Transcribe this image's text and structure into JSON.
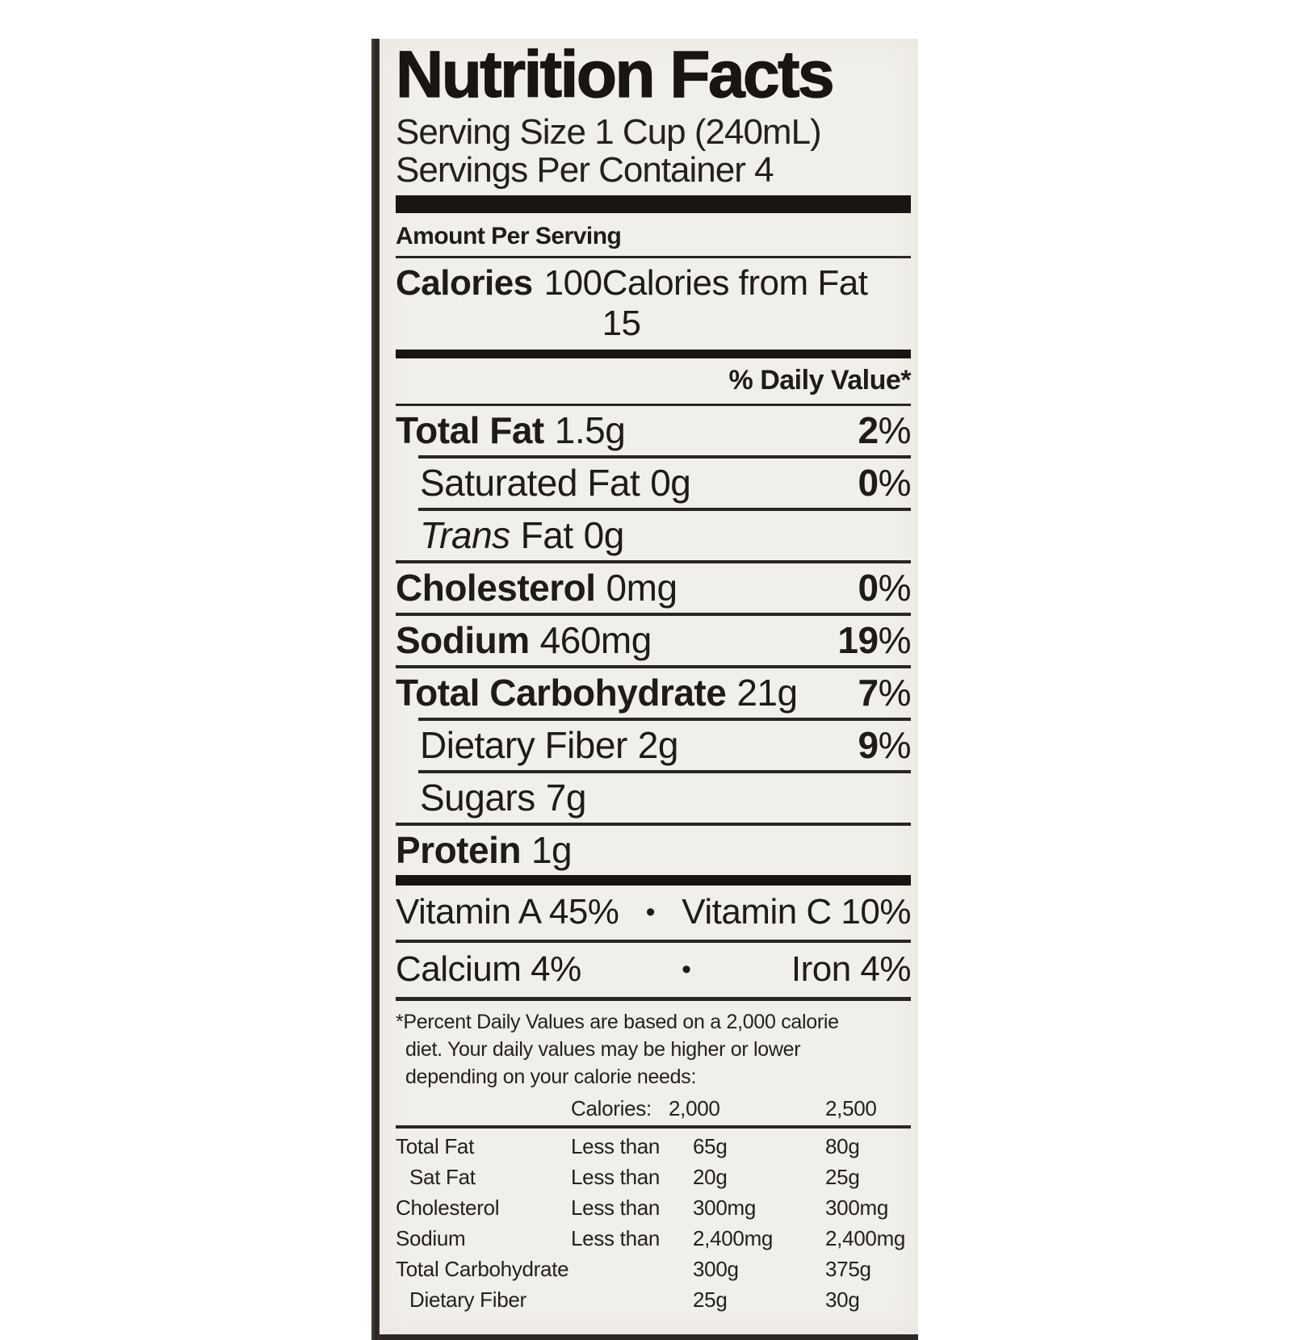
{
  "image": {
    "description": "Nutrition Facts label printed on an off-white package panel, photographed against a white background",
    "background_color": "#ffffff"
  },
  "label": {
    "colors": {
      "panel_background": "#f1efe9",
      "ink": "#1e1b18",
      "bar": "#181512",
      "package_edge": "#34302b"
    },
    "title": "Nutrition Facts",
    "serving_size_line": "Serving Size 1 Cup (240mL)",
    "servings_per_container_line": "Servings Per Container 4",
    "amount_per_serving": "Amount Per Serving",
    "calories": {
      "label": "Calories",
      "value": "100",
      "from_fat": "Calories from Fat 15"
    },
    "daily_value_header": "% Daily Value*",
    "percent_sign": "%",
    "nutrients": [
      {
        "name": "Total Fat",
        "amount": "1.5g",
        "dv": "2"
      },
      {
        "name": "Saturated Fat",
        "amount": "0g",
        "dv": "0"
      },
      {
        "name_italic": "Trans",
        "name": "Fat",
        "amount": "0g",
        "dv": ""
      },
      {
        "name": "Cholesterol",
        "amount": "0mg",
        "dv": "0"
      },
      {
        "name": "Sodium",
        "amount": "460mg",
        "dv": "19"
      },
      {
        "name": "Total Carbohydrate",
        "amount": "21g",
        "dv": "7"
      },
      {
        "name": "Dietary Fiber",
        "amount": "2g",
        "dv": "9"
      },
      {
        "name": "Sugars",
        "amount": "7g",
        "dv": ""
      },
      {
        "name": "Protein",
        "amount": "1g",
        "dv": ""
      }
    ],
    "vitamins": {
      "row1": {
        "left": "Vitamin A 45%",
        "separator": "•",
        "right": "Vitamin C 10%"
      },
      "row2": {
        "left": "Calcium 4%",
        "separator": "•",
        "right": "Iron 4%"
      }
    },
    "footnote_lines": [
      "*Percent Daily Values are based on a 2,000 calorie",
      "diet. Your daily values may be higher or lower",
      "depending on your calorie needs:"
    ],
    "dv_table": {
      "header": {
        "calories_label": "Calories:",
        "col_2000": "2,000",
        "col_2500": "2,500"
      },
      "rows": [
        {
          "name": "Total Fat",
          "condition": "Less than",
          "v2000": "65g",
          "v2500": "80g"
        },
        {
          "name": "Sat Fat",
          "condition": "Less than",
          "v2000": "20g",
          "v2500": "25g"
        },
        {
          "name": "Cholesterol",
          "condition": "Less than",
          "v2000": "300mg",
          "v2500": "300mg"
        },
        {
          "name": "Sodium",
          "condition": "Less than",
          "v2000": "2,400mg",
          "v2500": "2,400mg"
        },
        {
          "name": "Total Carbohydrate",
          "condition": "",
          "v2000": "300g",
          "v2500": "375g"
        },
        {
          "name": "Dietary Fiber",
          "condition": "",
          "v2000": "25g",
          "v2500": "30g"
        }
      ]
    }
  }
}
